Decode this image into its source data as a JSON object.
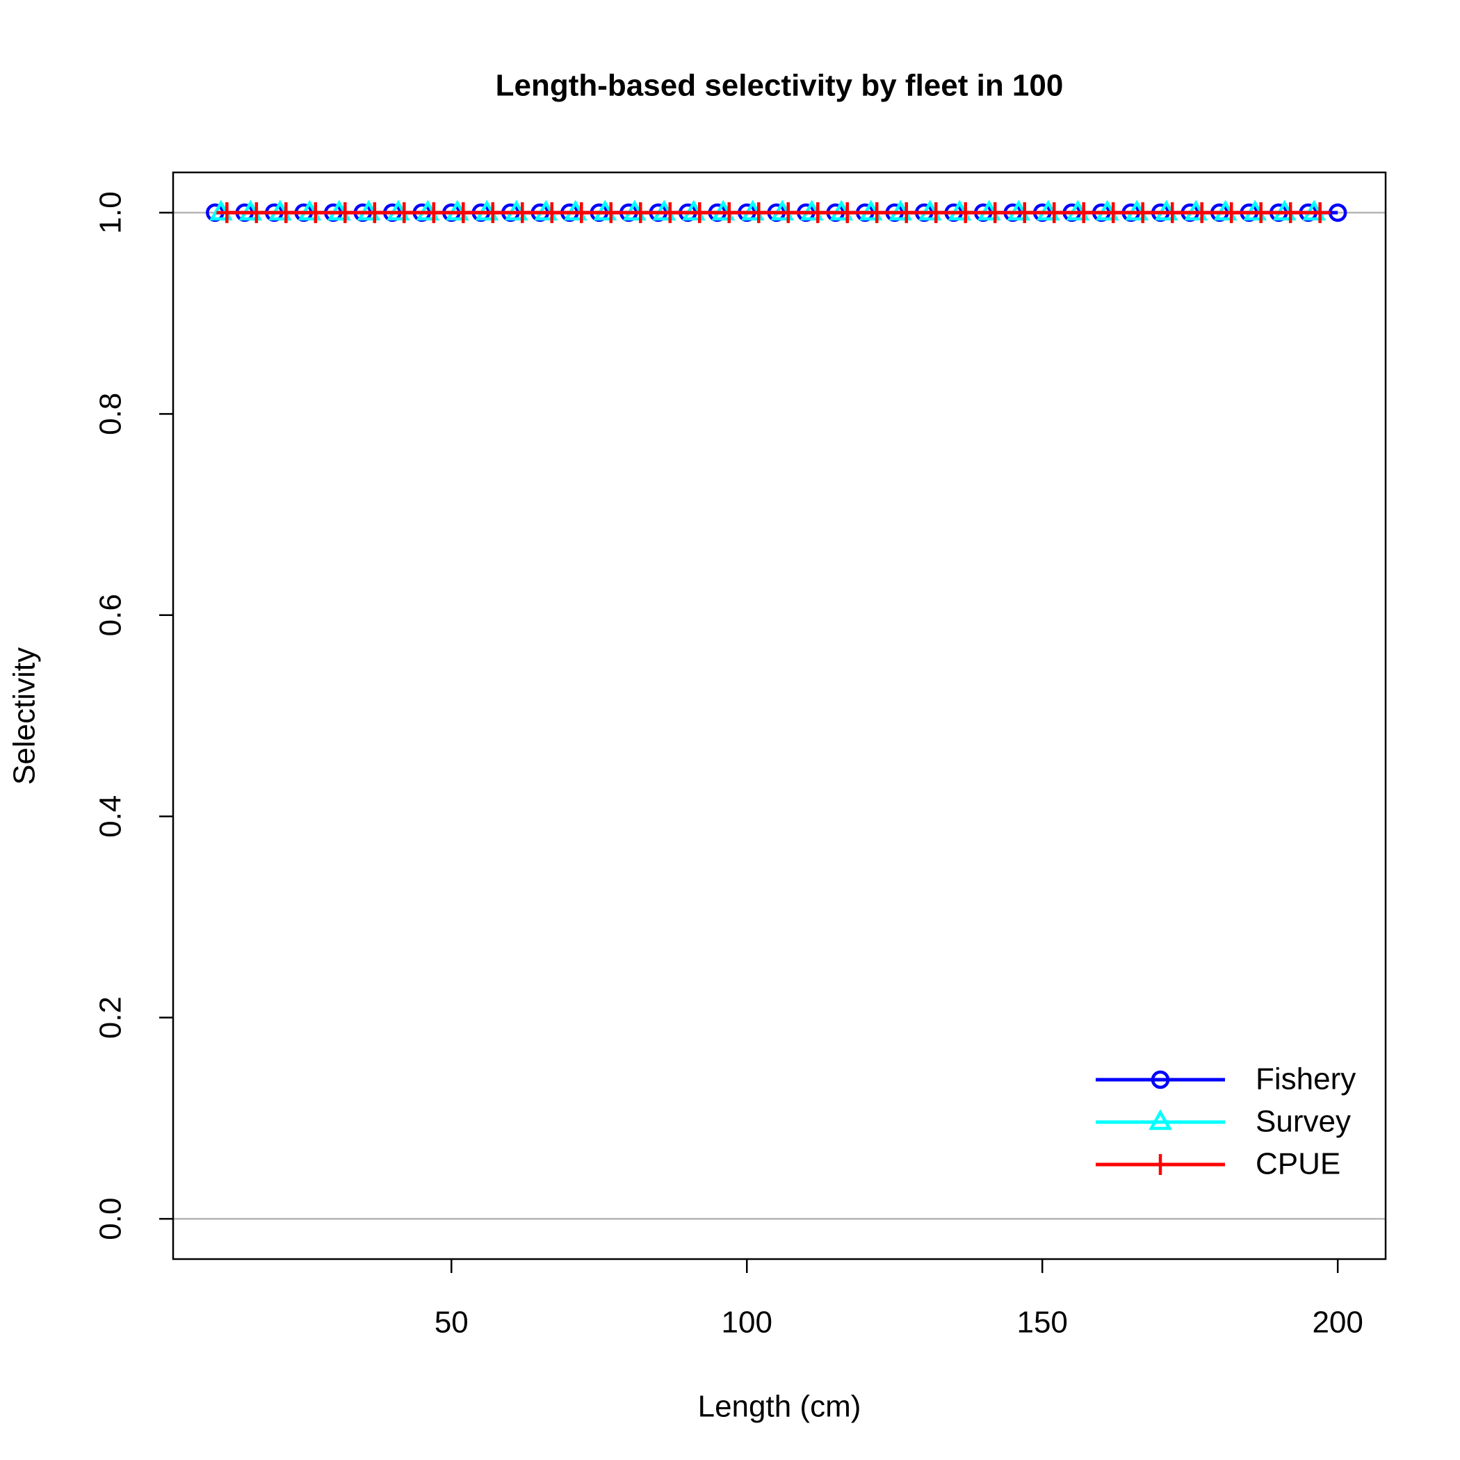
{
  "chart_data": {
    "type": "line",
    "title": "Length-based selectivity by fleet in 100",
    "xlabel": "Length (cm)",
    "ylabel": "Selectivity",
    "xlim": [
      2.9,
      208.1
    ],
    "ylim": [
      -0.04,
      1.04
    ],
    "xticks": [
      50,
      100,
      150,
      200
    ],
    "yticks": [
      {
        "value": 0,
        "label": "0.0"
      },
      {
        "value": 0.2,
        "label": "0.2"
      },
      {
        "value": 0.4,
        "label": "0.4"
      },
      {
        "value": 0.6,
        "label": "0.6"
      },
      {
        "value": 0.8,
        "label": "0.8"
      },
      {
        "value": 1,
        "label": "1.0"
      }
    ],
    "reference_lines": [
      0,
      1
    ],
    "legend": "bottomright",
    "series": [
      {
        "name": "Fishery",
        "color": "#0000ff",
        "marker": "circle",
        "x": [
          10,
          15,
          20,
          25,
          30,
          35,
          40,
          45,
          50,
          55,
          60,
          65,
          70,
          75,
          80,
          85,
          90,
          95,
          100,
          105,
          110,
          115,
          120,
          125,
          130,
          135,
          140,
          145,
          150,
          155,
          160,
          165,
          170,
          175,
          180,
          185,
          190,
          195,
          200
        ],
        "values": [
          1,
          1,
          1,
          1,
          1,
          1,
          1,
          1,
          1,
          1,
          1,
          1,
          1,
          1,
          1,
          1,
          1,
          1,
          1,
          1,
          1,
          1,
          1,
          1,
          1,
          1,
          1,
          1,
          1,
          1,
          1,
          1,
          1,
          1,
          1,
          1,
          1,
          1,
          1
        ]
      },
      {
        "name": "Survey",
        "color": "#00ffff",
        "marker": "triangle",
        "x": [
          11,
          16,
          21,
          26,
          31,
          36,
          41,
          46,
          51,
          56,
          61,
          66,
          71,
          76,
          81,
          86,
          91,
          96,
          101,
          106,
          111,
          116,
          121,
          126,
          131,
          136,
          141,
          146,
          151,
          156,
          161,
          166,
          171,
          176,
          181,
          186,
          191,
          196
        ],
        "values": [
          1,
          1,
          1,
          1,
          1,
          1,
          1,
          1,
          1,
          1,
          1,
          1,
          1,
          1,
          1,
          1,
          1,
          1,
          1,
          1,
          1,
          1,
          1,
          1,
          1,
          1,
          1,
          1,
          1,
          1,
          1,
          1,
          1,
          1,
          1,
          1,
          1,
          1
        ]
      },
      {
        "name": "CPUE",
        "color": "#ff0000",
        "marker": "plus",
        "x": [
          12,
          17,
          22,
          27,
          32,
          37,
          42,
          47,
          52,
          57,
          62,
          67,
          72,
          77,
          82,
          87,
          92,
          97,
          102,
          107,
          112,
          117,
          122,
          127,
          132,
          137,
          142,
          147,
          152,
          157,
          162,
          167,
          172,
          177,
          182,
          187,
          192,
          197
        ],
        "values": [
          1,
          1,
          1,
          1,
          1,
          1,
          1,
          1,
          1,
          1,
          1,
          1,
          1,
          1,
          1,
          1,
          1,
          1,
          1,
          1,
          1,
          1,
          1,
          1,
          1,
          1,
          1,
          1,
          1,
          1,
          1,
          1,
          1,
          1,
          1,
          1,
          1,
          1
        ]
      }
    ]
  }
}
